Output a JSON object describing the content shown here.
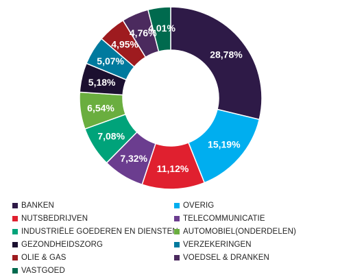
{
  "chart_data": {
    "type": "pie",
    "variant": "donut",
    "title": "",
    "legend_position": "bottom",
    "slices": [
      {
        "label": "BANKEN",
        "value": 28.78,
        "display": "28,78%",
        "color": "#2e1a47"
      },
      {
        "label": "OVERIG",
        "value": 15.19,
        "display": "15,19%",
        "color": "#00aeef"
      },
      {
        "label": "NUTSBEDRIJVEN",
        "value": 11.12,
        "display": "11,12%",
        "color": "#e0202f"
      },
      {
        "label": "TELECOMMUNICATIE",
        "value": 7.32,
        "display": "7,32%",
        "color": "#6b3d8f"
      },
      {
        "label": "INDUSTRIËLE GOEDEREN EN DIENSTEN",
        "value": 7.08,
        "display": "7,08%",
        "color": "#00a37a"
      },
      {
        "label": "AUTOMOBIEL(ONDERDELEN)",
        "value": 6.54,
        "display": "6,54%",
        "color": "#6aae3f"
      },
      {
        "label": "GEZONDHEIDSZORG",
        "value": 5.18,
        "display": "5,18%",
        "color": "#1c1030"
      },
      {
        "label": "VERZEKERINGEN",
        "value": 5.07,
        "display": "5,07%",
        "color": "#007a9e"
      },
      {
        "label": "OLIE & GAS",
        "value": 4.95,
        "display": "4,95%",
        "color": "#9e1b1f"
      },
      {
        "label": "VOEDSEL & DRANKEN",
        "value": 4.76,
        "display": "4,76%",
        "color": "#4b2a5e"
      },
      {
        "label": "VASTGOED",
        "value": 4.01,
        "display": "4,01%",
        "color": "#006a4e"
      }
    ]
  }
}
